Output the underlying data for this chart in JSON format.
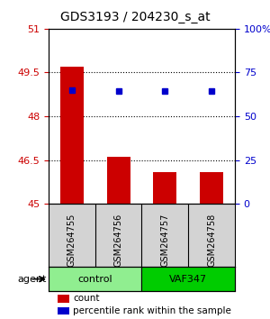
{
  "title": "GDS3193 / 204230_s_at",
  "samples": [
    "GSM264755",
    "GSM264756",
    "GSM264757",
    "GSM264758"
  ],
  "groups": [
    "control",
    "control",
    "VAF347",
    "VAF347"
  ],
  "group_labels": [
    "control",
    "VAF347"
  ],
  "group_colors": [
    "#90EE90",
    "#00CC00"
  ],
  "bar_values": [
    49.7,
    46.6,
    46.1,
    46.1
  ],
  "dot_values": [
    48.9,
    48.85,
    48.85,
    48.85
  ],
  "dot_percentile": [
    68,
    66,
    66,
    66
  ],
  "ylim_left": [
    45,
    51
  ],
  "ylim_right": [
    0,
    100
  ],
  "yticks_left": [
    45,
    46.5,
    48,
    49.5,
    51
  ],
  "yticks_right": [
    0,
    25,
    50,
    75,
    100
  ],
  "ytick_labels_right": [
    "0",
    "25",
    "50",
    "75",
    "100%"
  ],
  "bar_color": "#CC0000",
  "dot_color": "#0000CC",
  "bar_width": 0.5,
  "grid_color": "#000000",
  "background_color": "#ffffff",
  "legend_count_label": "count",
  "legend_pct_label": "percentile rank within the sample"
}
